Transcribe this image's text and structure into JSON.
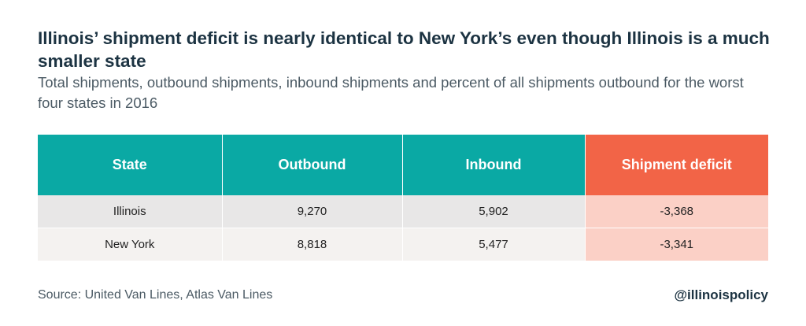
{
  "title": "Illinois’ shipment deficit is nearly identical to New York’s even though Illinois is a much smaller state",
  "subtitle": "Total shipments, outbound shipments, inbound shipments and percent of all shipments outbound for the worst four states in 2016",
  "table": {
    "headers": [
      "State",
      "Outbound",
      "Inbound",
      "Shipment deficit"
    ],
    "rows": [
      [
        "Illinois",
        "9,270",
        "5,902",
        "-3,368"
      ],
      [
        "New York",
        "8,818",
        "5,477",
        "-3,341"
      ]
    ]
  },
  "colors": {
    "header_teal": "#0aa9a4",
    "header_deficit": "#f26447",
    "deficit_cell": "#fbd0c6",
    "row_shade": "#e8e7e7",
    "title_text": "#1c3342"
  },
  "footer": {
    "source": "Source: United Van Lines, Atlas Van Lines",
    "handle": "@illinoispolicy"
  }
}
